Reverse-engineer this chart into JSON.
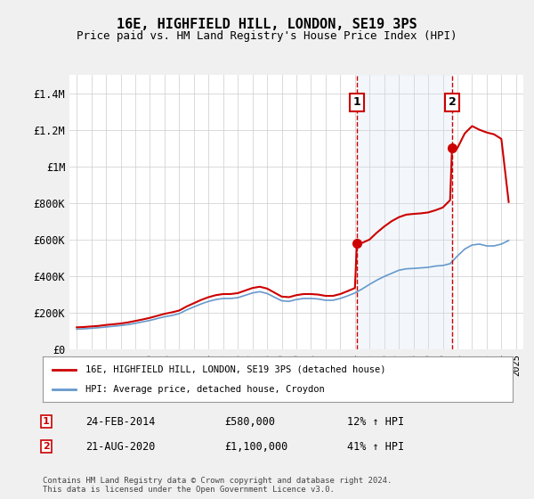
{
  "title": "16E, HIGHFIELD HILL, LONDON, SE19 3PS",
  "subtitle": "Price paid vs. HM Land Registry's House Price Index (HPI)",
  "hpi_label": "HPI: Average price, detached house, Croydon",
  "property_label": "16E, HIGHFIELD HILL, LONDON, SE19 3PS (detached house)",
  "sale1_date_label": "24-FEB-2014",
  "sale1_price_label": "£580,000",
  "sale1_hpi_label": "12% ↑ HPI",
  "sale1_year": 2014.13,
  "sale1_price": 580000,
  "sale2_date_label": "21-AUG-2020",
  "sale2_price_label": "£1,100,000",
  "sale2_hpi_label": "41% ↑ HPI",
  "sale2_year": 2020.63,
  "sale2_price": 1100000,
  "ylim": [
    0,
    1500000
  ],
  "yticks": [
    0,
    200000,
    400000,
    600000,
    800000,
    1000000,
    1200000,
    1400000
  ],
  "ytick_labels": [
    "£0",
    "£200K",
    "£400K",
    "£600K",
    "£800K",
    "£1M",
    "£1.2M",
    "£1.4M"
  ],
  "background_color": "#f0f0f0",
  "plot_bg_color": "#ffffff",
  "hpi_color": "#6699cc",
  "property_color": "#cc0000",
  "dashed_line_color": "#cc0000",
  "shade_color": "#d0e0f0",
  "footnote": "Contains HM Land Registry data © Crown copyright and database right 2024.\nThis data is licensed under the Open Government Licence v3.0.",
  "hpi_data": {
    "years": [
      1995,
      1995.5,
      1996,
      1996.5,
      1997,
      1997.5,
      1998,
      1998.5,
      1999,
      1999.5,
      2000,
      2000.5,
      2001,
      2001.5,
      2002,
      2002.5,
      2003,
      2003.5,
      2004,
      2004.5,
      2005,
      2005.5,
      2006,
      2006.5,
      2007,
      2007.5,
      2008,
      2008.5,
      2009,
      2009.5,
      2010,
      2010.5,
      2011,
      2011.5,
      2012,
      2012.5,
      2013,
      2013.5,
      2014,
      2014.5,
      2015,
      2015.5,
      2016,
      2016.5,
      2017,
      2017.5,
      2018,
      2018.5,
      2019,
      2019.5,
      2020,
      2020.5,
      2021,
      2021.5,
      2022,
      2022.5,
      2023,
      2023.5,
      2024,
      2024.5
    ],
    "values": [
      110000,
      112000,
      115000,
      118000,
      122000,
      126000,
      130000,
      135000,
      142000,
      150000,
      158000,
      168000,
      178000,
      185000,
      195000,
      215000,
      232000,
      248000,
      262000,
      272000,
      278000,
      278000,
      282000,
      295000,
      308000,
      315000,
      305000,
      285000,
      265000,
      262000,
      272000,
      278000,
      278000,
      275000,
      268000,
      268000,
      278000,
      292000,
      308000,
      330000,
      355000,
      378000,
      398000,
      415000,
      432000,
      440000,
      442000,
      445000,
      448000,
      455000,
      458000,
      468000,
      510000,
      548000,
      570000,
      575000,
      565000,
      565000,
      575000,
      595000
    ]
  },
  "property_hpi_data": {
    "years": [
      1995,
      1995.5,
      1996,
      1996.5,
      1997,
      1997.5,
      1998,
      1998.5,
      1999,
      1999.5,
      2000,
      2000.5,
      2001,
      2001.5,
      2002,
      2002.5,
      2003,
      2003.5,
      2004,
      2004.5,
      2005,
      2005.5,
      2006,
      2006.5,
      2007,
      2007.5,
      2008,
      2008.5,
      2009,
      2009.5,
      2010,
      2010.5,
      2011,
      2011.5,
      2012,
      2012.5,
      2013,
      2013.5,
      2014,
      2014.13,
      2014.5,
      2015,
      2015.5,
      2016,
      2016.5,
      2017,
      2017.5,
      2018,
      2018.5,
      2019,
      2019.5,
      2020,
      2020.5,
      2020.63,
      2021,
      2021.5,
      2022,
      2022.5,
      2023,
      2023.5,
      2024,
      2024.5
    ],
    "values": [
      120000,
      122000,
      125000,
      128000,
      133000,
      137000,
      141000,
      147000,
      155000,
      163000,
      172000,
      183000,
      194000,
      202000,
      212000,
      234000,
      252000,
      270000,
      285000,
      296000,
      302000,
      302000,
      307000,
      321000,
      335000,
      342000,
      332000,
      310000,
      288000,
      285000,
      296000,
      302000,
      302000,
      299000,
      292000,
      292000,
      302000,
      318000,
      335000,
      580000,
      582000,
      600000,
      638000,
      671000,
      700000,
      722000,
      736000,
      740000,
      743000,
      748000,
      760000,
      775000,
      815000,
      1100000,
      1100000,
      1180000,
      1220000,
      1200000,
      1185000,
      1175000,
      1150000,
      805000
    ]
  }
}
